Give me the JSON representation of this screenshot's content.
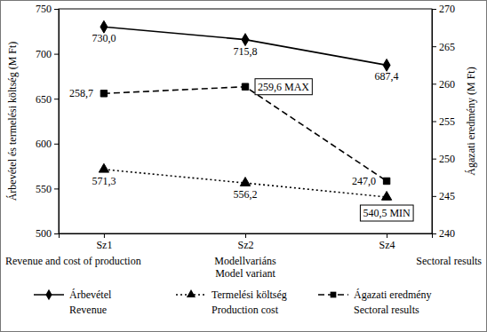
{
  "chart_data": {
    "type": "line",
    "categories": [
      "Sz1",
      "Sz2",
      "Sz4"
    ],
    "x_label": "Modellvariáns",
    "x_label_en": "Model variant",
    "y_label": "Árbevétel és termelési költség (M Ft)",
    "y_label_en": "Revenue and cost of production",
    "y2_label": "Ágazati eredmény (M Ft)",
    "y2_label_en": "Sectoral results",
    "ylim": [
      500,
      750
    ],
    "yticks": [
      500,
      550,
      600,
      650,
      700,
      750
    ],
    "y2lim": [
      240,
      270
    ],
    "y2ticks": [
      240,
      245,
      250,
      255,
      260,
      265,
      270
    ],
    "grid": false,
    "legend": "bottom",
    "data_labels": true,
    "series": [
      {
        "name": "Árbevétel",
        "name_en": "Revenue",
        "color": "#000000",
        "marker": "diamond",
        "line_style": "solid",
        "values": [
          730.0,
          715.8,
          687.4
        ],
        "value_labels": [
          "730,0",
          "715,8",
          "687,4"
        ]
      },
      {
        "name": "Termelési költség",
        "name_en": "Production cost",
        "color": "#000000",
        "marker": "triangle",
        "line_style": "dotted",
        "values": [
          571.3,
          556.2,
          540.5
        ],
        "value_labels": [
          "571,3",
          "556,2",
          "540,5 MIN"
        ]
      },
      {
        "name": "Ágazati eredmény",
        "name_en": "Sectoral results",
        "color": "#000000",
        "marker": "square",
        "line_style": "dashed",
        "axis": "y2",
        "values": [
          258.7,
          259.6,
          247.0
        ],
        "value_labels": [
          "258,7",
          "259,6 MAX",
          "247,0"
        ]
      }
    ]
  }
}
